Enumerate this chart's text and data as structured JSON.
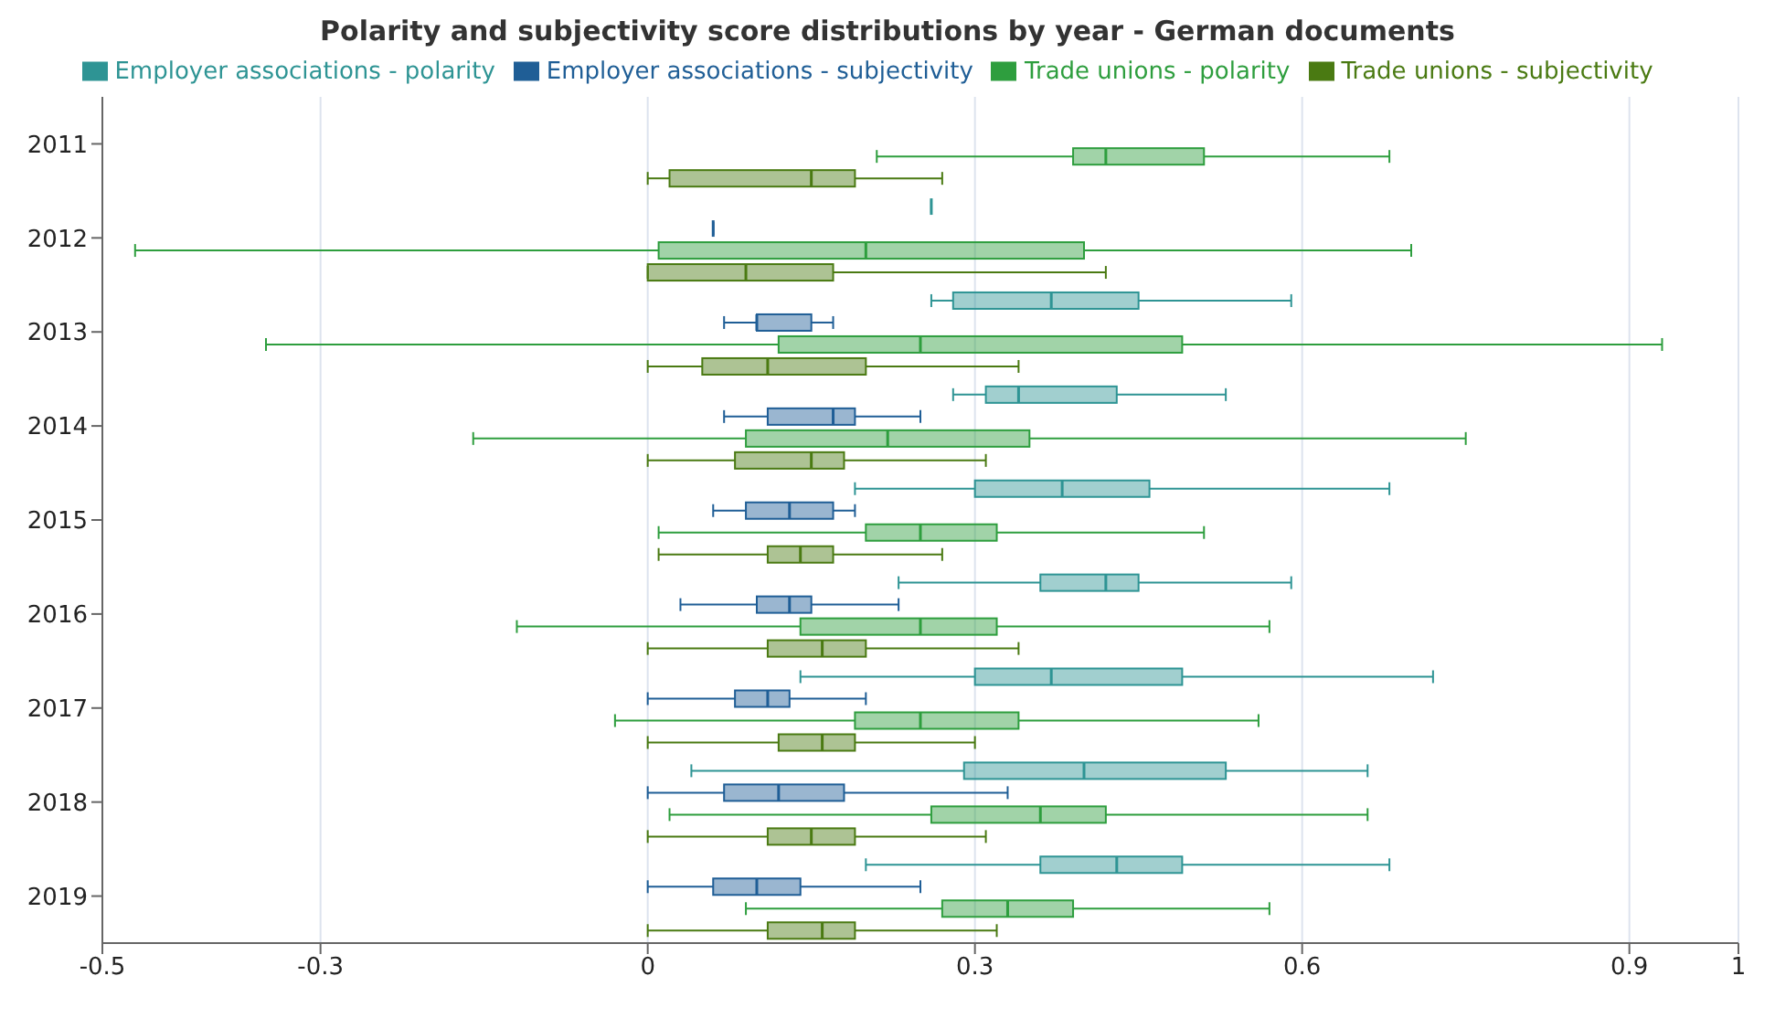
{
  "chart_data": {
    "type": "box",
    "orientation": "horizontal",
    "title": "Polarity and subjectivity score distributions by year - German documents",
    "categories": [
      "2011",
      "2012",
      "2013",
      "2014",
      "2015",
      "2016",
      "2017",
      "2018",
      "2019"
    ],
    "xlim": [
      -0.5,
      1
    ],
    "xticks": [
      -0.5,
      -0.3,
      0,
      0.3,
      0.6,
      0.9,
      1
    ],
    "grid": "x",
    "legend": "top",
    "series": [
      {
        "name": "Employer associations - polarity",
        "color": "#2e9494",
        "boxes": [
          null,
          {
            "low": 0.26,
            "q1": 0.26,
            "median": 0.26,
            "q3": 0.26,
            "high": 0.26
          },
          {
            "low": 0.26,
            "q1": 0.28,
            "median": 0.37,
            "q3": 0.45,
            "high": 0.59
          },
          {
            "low": 0.28,
            "q1": 0.31,
            "median": 0.34,
            "q3": 0.43,
            "high": 0.53
          },
          {
            "low": 0.19,
            "q1": 0.3,
            "median": 0.38,
            "q3": 0.46,
            "high": 0.68
          },
          {
            "low": 0.23,
            "q1": 0.36,
            "median": 0.42,
            "q3": 0.45,
            "high": 0.59
          },
          {
            "low": 0.14,
            "q1": 0.3,
            "median": 0.37,
            "q3": 0.49,
            "high": 0.72
          },
          {
            "low": 0.04,
            "q1": 0.29,
            "median": 0.4,
            "q3": 0.53,
            "high": 0.66
          },
          {
            "low": 0.2,
            "q1": 0.36,
            "median": 0.43,
            "q3": 0.49,
            "high": 0.68
          }
        ]
      },
      {
        "name": "Employer associations - subjectivity",
        "color": "#1f5e96",
        "boxes": [
          null,
          {
            "low": 0.06,
            "q1": 0.06,
            "median": 0.06,
            "q3": 0.06,
            "high": 0.06
          },
          {
            "low": 0.07,
            "q1": 0.1,
            "median": 0.1,
            "q3": 0.15,
            "high": 0.17
          },
          {
            "low": 0.07,
            "q1": 0.11,
            "median": 0.17,
            "q3": 0.19,
            "high": 0.25
          },
          {
            "low": 0.06,
            "q1": 0.09,
            "median": 0.13,
            "q3": 0.17,
            "high": 0.19
          },
          {
            "low": 0.03,
            "q1": 0.1,
            "median": 0.13,
            "q3": 0.15,
            "high": 0.23
          },
          {
            "low": 0,
            "q1": 0.08,
            "median": 0.11,
            "q3": 0.13,
            "high": 0.2
          },
          {
            "low": 0,
            "q1": 0.07,
            "median": 0.12,
            "q3": 0.18,
            "high": 0.33
          },
          {
            "low": 0,
            "q1": 0.06,
            "median": 0.1,
            "q3": 0.14,
            "high": 0.25
          }
        ]
      },
      {
        "name": "Trade unions - polarity",
        "color": "#2e9e3e",
        "boxes": [
          {
            "low": 0.21,
            "q1": 0.39,
            "median": 0.42,
            "q3": 0.51,
            "high": 0.68
          },
          {
            "low": -0.47,
            "q1": 0.01,
            "median": 0.2,
            "q3": 0.4,
            "high": 0.7
          },
          {
            "low": -0.35,
            "q1": 0.12,
            "median": 0.25,
            "q3": 0.49,
            "high": 0.93
          },
          {
            "low": -0.16,
            "q1": 0.09,
            "median": 0.22,
            "q3": 0.35,
            "high": 0.75
          },
          {
            "low": 0.01,
            "q1": 0.2,
            "median": 0.25,
            "q3": 0.32,
            "high": 0.51
          },
          {
            "low": -0.12,
            "q1": 0.14,
            "median": 0.25,
            "q3": 0.32,
            "high": 0.57
          },
          {
            "low": -0.03,
            "q1": 0.19,
            "median": 0.25,
            "q3": 0.34,
            "high": 0.56
          },
          {
            "low": 0.02,
            "q1": 0.26,
            "median": 0.36,
            "q3": 0.42,
            "high": 0.66
          },
          {
            "low": 0.09,
            "q1": 0.27,
            "median": 0.33,
            "q3": 0.39,
            "high": 0.57
          }
        ]
      },
      {
        "name": "Trade unions - subjectivity",
        "color": "#4a7a12",
        "boxes": [
          {
            "low": 0,
            "q1": 0.02,
            "median": 0.15,
            "q3": 0.19,
            "high": 0.27
          },
          {
            "low": 0,
            "q1": 0,
            "median": 0.09,
            "q3": 0.17,
            "high": 0.42
          },
          {
            "low": 0,
            "q1": 0.05,
            "median": 0.11,
            "q3": 0.2,
            "high": 0.34
          },
          {
            "low": 0,
            "q1": 0.08,
            "median": 0.15,
            "q3": 0.18,
            "high": 0.31
          },
          {
            "low": 0.01,
            "q1": 0.11,
            "median": 0.14,
            "q3": 0.17,
            "high": 0.27
          },
          {
            "low": 0,
            "q1": 0.11,
            "median": 0.16,
            "q3": 0.2,
            "high": 0.34
          },
          {
            "low": 0,
            "q1": 0.12,
            "median": 0.16,
            "q3": 0.19,
            "high": 0.3
          },
          {
            "low": 0,
            "q1": 0.11,
            "median": 0.15,
            "q3": 0.19,
            "high": 0.31
          },
          {
            "low": 0,
            "q1": 0.11,
            "median": 0.16,
            "q3": 0.19,
            "high": 0.32
          }
        ]
      }
    ]
  }
}
